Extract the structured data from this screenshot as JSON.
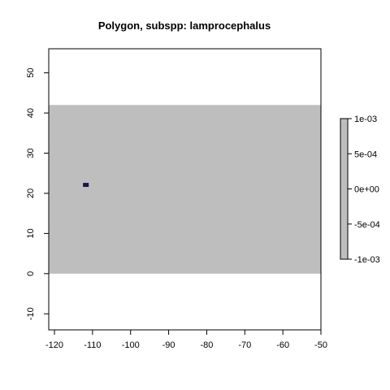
{
  "chart_data": {
    "type": "heatmap",
    "title": "Polygon, subspp: lamprocephalus",
    "xlabel": "",
    "ylabel": "",
    "xlim": [
      -121.5,
      -50
    ],
    "ylim": [
      -14,
      56
    ],
    "x_ticks": [
      -120,
      -110,
      -100,
      -90,
      -80,
      -70,
      -60,
      -50
    ],
    "y_ticks": [
      -10,
      0,
      10,
      20,
      30,
      40,
      50
    ],
    "x_tick_labels": [
      "-120",
      "-110",
      "-100",
      "-90",
      "-80",
      "-70",
      "-60",
      "-50"
    ],
    "y_tick_labels": [
      "-10",
      "0",
      "10",
      "20",
      "30",
      "40",
      "50"
    ],
    "raster_extent": {
      "xmin": -121.5,
      "xmax": -50,
      "ymin": 0,
      "ymax": 42
    },
    "raster_fill_value": 0,
    "raster_fill_color": "#bebebe",
    "highlight_cell": {
      "xmin": -112.5,
      "xmax": -111,
      "ymin": 21.6,
      "ymax": 22.6,
      "color": "#1f1340"
    },
    "legend": {
      "position": "right",
      "min": -0.001,
      "max": 0.001,
      "ticks": [
        0.001,
        0.0005,
        0,
        -0.0005,
        -0.001
      ],
      "tick_labels": [
        "1e-03",
        "5e-04",
        "0e+00",
        "-5e-04",
        "-1e-03"
      ],
      "color": "#bebebe"
    },
    "grid": false
  }
}
